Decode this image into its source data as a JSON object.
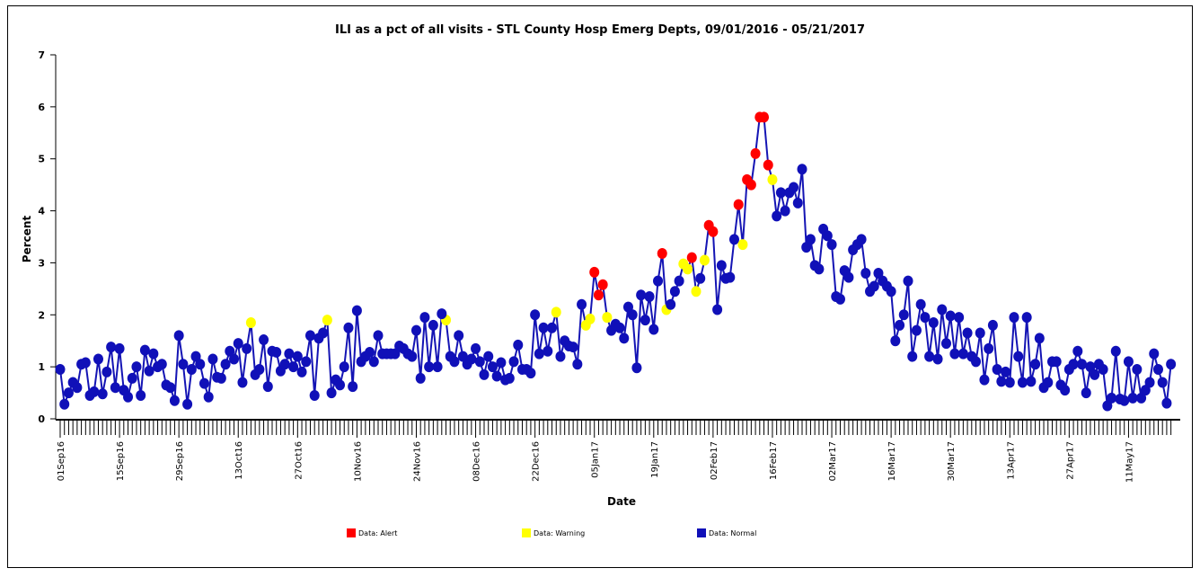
{
  "chart_data": {
    "type": "line",
    "title": "ILI as a pct of all visits - STL County Hosp Emerg Depts, 09/01/2016 - 05/21/2017",
    "x_label": "Date",
    "y_label": "Percent",
    "ylim": [
      0,
      7
    ],
    "yticks": [
      0,
      1,
      2,
      3,
      4,
      5,
      6,
      7
    ],
    "line_color": "#1414b4",
    "categories": [
      "01Sep16",
      null,
      null,
      null,
      null,
      null,
      null,
      null,
      null,
      null,
      null,
      null,
      null,
      null,
      "15Sep16",
      null,
      null,
      null,
      null,
      null,
      null,
      null,
      null,
      null,
      null,
      null,
      null,
      null,
      "29Sep16",
      null,
      null,
      null,
      null,
      null,
      null,
      null,
      null,
      null,
      null,
      null,
      null,
      null,
      "13Oct16",
      null,
      null,
      null,
      null,
      null,
      null,
      null,
      null,
      null,
      null,
      null,
      null,
      null,
      "27Oct16",
      null,
      null,
      null,
      null,
      null,
      null,
      null,
      null,
      null,
      null,
      null,
      null,
      null,
      "10Nov16",
      null,
      null,
      null,
      null,
      null,
      null,
      null,
      null,
      null,
      null,
      null,
      null,
      null,
      "24Nov16",
      null,
      null,
      null,
      null,
      null,
      null,
      null,
      null,
      null,
      null,
      null,
      null,
      null,
      "08Dec16",
      null,
      null,
      null,
      null,
      null,
      null,
      null,
      null,
      null,
      null,
      null,
      null,
      null,
      "22Dec16",
      null,
      null,
      null,
      null,
      null,
      null,
      null,
      null,
      null,
      null,
      null,
      null,
      null,
      "05Jan17",
      null,
      null,
      null,
      null,
      null,
      null,
      null,
      null,
      null,
      null,
      null,
      null,
      null,
      "19Jan17",
      null,
      null,
      null,
      null,
      null,
      null,
      null,
      null,
      null,
      null,
      null,
      null,
      null,
      "02Feb17",
      null,
      null,
      null,
      null,
      null,
      null,
      null,
      null,
      null,
      null,
      null,
      null,
      null,
      "16Feb17",
      null,
      null,
      null,
      null,
      null,
      null,
      null,
      null,
      null,
      null,
      null,
      null,
      null,
      "02Mar17",
      null,
      null,
      null,
      null,
      null,
      null,
      null,
      null,
      null,
      null,
      null,
      null,
      null,
      "16Mar17",
      null,
      null,
      null,
      null,
      null,
      null,
      null,
      null,
      null,
      null,
      null,
      null,
      null,
      "30Mar17",
      null,
      null,
      null,
      null,
      null,
      null,
      null,
      null,
      null,
      null,
      null,
      null,
      null,
      "13Apr17",
      null,
      null,
      null,
      null,
      null,
      null,
      null,
      null,
      null,
      null,
      null,
      null,
      null,
      "27Apr17",
      null,
      null,
      null,
      null,
      null,
      null,
      null,
      null,
      null,
      null,
      null,
      null,
      null,
      "11May17",
      null,
      null,
      null,
      null,
      null,
      null,
      null,
      null,
      null,
      null
    ],
    "series": [
      {
        "name": "Data: Alert",
        "color": "#ff0000",
        "values": [
          null,
          null,
          null,
          null,
          null,
          null,
          null,
          null,
          null,
          null,
          null,
          null,
          null,
          null,
          null,
          null,
          null,
          null,
          null,
          null,
          null,
          null,
          null,
          null,
          null,
          null,
          null,
          null,
          null,
          null,
          null,
          null,
          null,
          null,
          null,
          null,
          null,
          null,
          null,
          null,
          null,
          null,
          null,
          null,
          null,
          null,
          null,
          null,
          null,
          null,
          null,
          null,
          null,
          null,
          null,
          null,
          null,
          null,
          null,
          null,
          null,
          null,
          null,
          null,
          null,
          null,
          null,
          null,
          null,
          null,
          null,
          null,
          null,
          null,
          null,
          null,
          null,
          null,
          null,
          null,
          null,
          null,
          null,
          null,
          null,
          null,
          null,
          null,
          null,
          null,
          null,
          null,
          null,
          null,
          null,
          null,
          null,
          null,
          null,
          null,
          null,
          null,
          null,
          null,
          null,
          null,
          null,
          null,
          null,
          null,
          null,
          null,
          null,
          null,
          null,
          null,
          null,
          null,
          null,
          null,
          null,
          null,
          null,
          null,
          null,
          null,
          2.82,
          2.38,
          2.58,
          null,
          null,
          null,
          null,
          null,
          null,
          null,
          null,
          null,
          null,
          null,
          null,
          null,
          3.18,
          null,
          null,
          null,
          null,
          null,
          null,
          3.1,
          null,
          null,
          null,
          3.72,
          3.6,
          null,
          null,
          null,
          null,
          null,
          4.12,
          null,
          4.6,
          4.5,
          5.1,
          5.8,
          5.8,
          4.88,
          null,
          null,
          null,
          null,
          null,
          null,
          null,
          null,
          null,
          null,
          null,
          null,
          null,
          null,
          null,
          null,
          null,
          null,
          null,
          null,
          null,
          null,
          null,
          null,
          null,
          null,
          null,
          null,
          null,
          null,
          null,
          null,
          null,
          null,
          null,
          null,
          null,
          null,
          null,
          null,
          null,
          null,
          null,
          null,
          null,
          null,
          null,
          null,
          null,
          null,
          null,
          null,
          null,
          null,
          null,
          null,
          null,
          null,
          null,
          null,
          null,
          null,
          null,
          null,
          null,
          null,
          null,
          null,
          null,
          null,
          null,
          null,
          null,
          null,
          null,
          null,
          null,
          null,
          null,
          null,
          null,
          null,
          null,
          null,
          null,
          null,
          null,
          null,
          null,
          null,
          null,
          null,
          null,
          null,
          null
        ]
      },
      {
        "name": "Data: Warning",
        "color": "#ffff00",
        "values": [
          null,
          null,
          null,
          null,
          null,
          null,
          null,
          null,
          null,
          null,
          null,
          null,
          null,
          null,
          null,
          null,
          null,
          null,
          null,
          null,
          null,
          null,
          null,
          null,
          null,
          null,
          null,
          null,
          null,
          null,
          null,
          null,
          null,
          null,
          null,
          null,
          null,
          null,
          null,
          null,
          null,
          null,
          null,
          null,
          null,
          1.85,
          null,
          null,
          null,
          null,
          null,
          null,
          null,
          null,
          null,
          null,
          null,
          null,
          null,
          null,
          null,
          null,
          null,
          1.9,
          null,
          null,
          null,
          null,
          null,
          null,
          null,
          null,
          null,
          null,
          null,
          null,
          null,
          null,
          null,
          null,
          null,
          null,
          null,
          null,
          null,
          null,
          null,
          null,
          null,
          null,
          null,
          1.9,
          null,
          null,
          null,
          null,
          null,
          null,
          null,
          null,
          null,
          null,
          null,
          null,
          null,
          null,
          null,
          null,
          null,
          null,
          null,
          null,
          null,
          null,
          null,
          null,
          null,
          2.05,
          null,
          null,
          null,
          null,
          null,
          null,
          1.8,
          1.92,
          null,
          null,
          null,
          1.95,
          null,
          null,
          null,
          null,
          null,
          null,
          null,
          null,
          null,
          null,
          null,
          null,
          null,
          2.1,
          null,
          null,
          null,
          2.98,
          2.88,
          null,
          2.45,
          null,
          3.05,
          null,
          null,
          null,
          null,
          null,
          null,
          null,
          null,
          3.35,
          null,
          null,
          null,
          null,
          null,
          null,
          4.6,
          null,
          null,
          null,
          null,
          null,
          null,
          null,
          null,
          null,
          null,
          null,
          null,
          null,
          null,
          null,
          null,
          null,
          null,
          null,
          null,
          null,
          null,
          null,
          null,
          null,
          null,
          null,
          null,
          null,
          null,
          null,
          null,
          null,
          null,
          null,
          null,
          null,
          null,
          null,
          null,
          null,
          null,
          null,
          null,
          null,
          null,
          null,
          null,
          null,
          null,
          null,
          null,
          null,
          null,
          null,
          null,
          null,
          null,
          null,
          null,
          null,
          null,
          null,
          null,
          null,
          null,
          null,
          null,
          null,
          null,
          null,
          null,
          null,
          null,
          null,
          null,
          null,
          null,
          null,
          null,
          null,
          null,
          null,
          null,
          null,
          null,
          null,
          null,
          null,
          null,
          null,
          null,
          null,
          null
        ]
      },
      {
        "name": "Data: Normal",
        "color": "#1010b8",
        "values": [
          0.95,
          0.28,
          0.5,
          0.7,
          0.6,
          1.05,
          1.08,
          0.45,
          0.52,
          1.15,
          0.48,
          0.9,
          1.38,
          0.6,
          1.35,
          0.55,
          0.42,
          0.78,
          1.0,
          0.45,
          1.32,
          0.92,
          1.25,
          1.0,
          1.05,
          0.65,
          0.6,
          0.35,
          1.6,
          1.05,
          0.28,
          0.95,
          1.2,
          1.05,
          0.68,
          0.42,
          1.15,
          0.8,
          0.78,
          1.05,
          1.3,
          1.15,
          1.45,
          0.7,
          1.35,
          null,
          0.85,
          0.95,
          1.52,
          0.62,
          1.3,
          1.28,
          0.92,
          1.05,
          1.25,
          1.0,
          1.2,
          0.9,
          1.1,
          1.6,
          0.45,
          1.55,
          1.65,
          null,
          0.5,
          0.75,
          0.65,
          1.0,
          1.75,
          0.62,
          2.08,
          1.1,
          1.2,
          1.28,
          1.1,
          1.6,
          1.25,
          1.25,
          1.25,
          1.25,
          1.4,
          1.35,
          1.25,
          1.2,
          1.7,
          0.78,
          1.95,
          1.0,
          1.8,
          1.0,
          2.02,
          null,
          1.2,
          1.1,
          1.6,
          1.2,
          1.05,
          1.15,
          1.35,
          1.1,
          0.85,
          1.2,
          1.0,
          0.82,
          1.08,
          0.75,
          0.78,
          1.1,
          1.42,
          0.95,
          0.95,
          0.88,
          2.0,
          1.25,
          1.75,
          1.3,
          1.75,
          null,
          1.2,
          1.5,
          1.4,
          1.38,
          1.05,
          2.2,
          null,
          null,
          null,
          null,
          null,
          null,
          1.7,
          1.82,
          1.75,
          1.55,
          2.15,
          2.0,
          0.98,
          2.38,
          1.9,
          2.35,
          1.72,
          2.65,
          null,
          null,
          2.2,
          2.45,
          2.65,
          null,
          null,
          null,
          null,
          2.7,
          null,
          null,
          null,
          2.1,
          2.95,
          2.7,
          2.72,
          3.45,
          null,
          null,
          null,
          null,
          null,
          null,
          null,
          null,
          null,
          3.9,
          4.35,
          4.0,
          4.35,
          4.45,
          4.15,
          4.8,
          3.3,
          3.45,
          2.95,
          2.88,
          3.65,
          3.52,
          3.35,
          2.35,
          2.3,
          2.85,
          2.72,
          3.25,
          3.35,
          3.45,
          2.8,
          2.45,
          2.55,
          2.8,
          2.65,
          2.55,
          2.45,
          1.5,
          1.8,
          2.0,
          2.65,
          1.2,
          1.7,
          2.2,
          1.95,
          1.2,
          1.85,
          1.15,
          2.1,
          1.45,
          1.98,
          1.25,
          1.95,
          1.25,
          1.65,
          1.2,
          1.1,
          1.65,
          0.75,
          1.35,
          1.8,
          0.95,
          0.72,
          0.9,
          0.7,
          1.95,
          1.2,
          0.7,
          1.95,
          0.72,
          1.05,
          1.55,
          0.6,
          0.7,
          1.1,
          1.1,
          0.65,
          0.55,
          0.95,
          1.05,
          1.3,
          1.05,
          0.5,
          1.0,
          0.85,
          1.05,
          0.95,
          0.25,
          0.4,
          1.3,
          0.38,
          0.35,
          1.1,
          0.4,
          0.95,
          0.4,
          0.55,
          0.7,
          1.25,
          0.95,
          0.7,
          0.3,
          1.05
        ]
      }
    ]
  }
}
